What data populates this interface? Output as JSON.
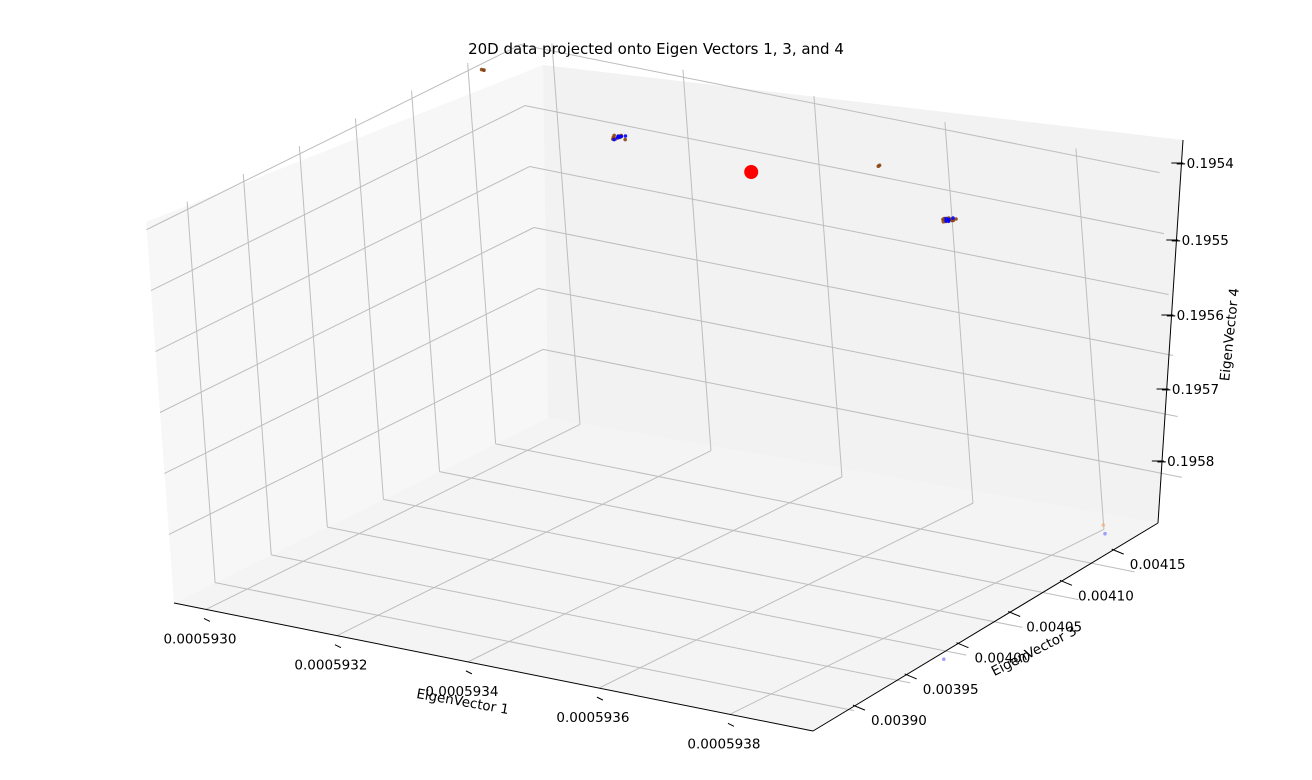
{
  "chart_data": {
    "type": "scatter",
    "title": "20D data projected onto Eigen Vectors 1, 3, and 4",
    "xlabel": "EigenVector 1",
    "ylabel": "EigenVector 3",
    "zlabel": "EigenVector 4",
    "x_ticks": [
      "0.0005930",
      "0.0005932",
      "0.0005934",
      "0.0005936",
      "0.0005938"
    ],
    "y_ticks": [
      "0.00390",
      "0.00395",
      "0.00400",
      "0.00405",
      "0.00410",
      "0.00415"
    ],
    "z_ticks": [
      "−0.1954",
      "−0.1955",
      "−0.1956",
      "−0.1957",
      "−0.1958"
    ],
    "grid": true,
    "colors": {
      "orange_points": "#8b4513",
      "blue_points": "#0000ff",
      "light_blue_points": "#8a8aff",
      "light_orange_points": "#f4b183",
      "centroid": "#ff0000",
      "pane_back": "#f2f2f2",
      "pane_side": "#ebebeb",
      "pane_floor": "#f4f4f4",
      "grid": "#bdbdbd"
    },
    "clusters": [
      {
        "series": "orange",
        "x": 0.0005929,
        "y": 0.00418,
        "z": -0.19545,
        "count": 3
      },
      {
        "series": "orange",
        "x": 0.0005931,
        "y": 0.00418,
        "z": -0.1955,
        "count": 10
      },
      {
        "series": "blue",
        "x": 0.0005931,
        "y": 0.00418,
        "z": -0.1955,
        "count": 6
      },
      {
        "series": "orange",
        "x": 0.0005935,
        "y": 0.00418,
        "z": -0.19547,
        "count": 2
      },
      {
        "series": "orange",
        "x": 0.0005936,
        "y": 0.00418,
        "z": -0.19552,
        "count": 10
      },
      {
        "series": "blue",
        "x": 0.0005936,
        "y": 0.00418,
        "z": -0.19552,
        "count": 6
      },
      {
        "series": "light_blue",
        "x": 0.0005939,
        "y": 0.00398,
        "z": -0.19587,
        "count": 1
      },
      {
        "series": "light_blue",
        "x": 0.0005938,
        "y": 0.00418,
        "z": -0.19587,
        "count": 1
      },
      {
        "series": "light_orange",
        "x": 0.0005938,
        "y": 0.00418,
        "z": -0.19586,
        "count": 1
      }
    ],
    "centroid": {
      "x": 0.0005933,
      "y": 0.00418,
      "z": -0.19551
    }
  }
}
